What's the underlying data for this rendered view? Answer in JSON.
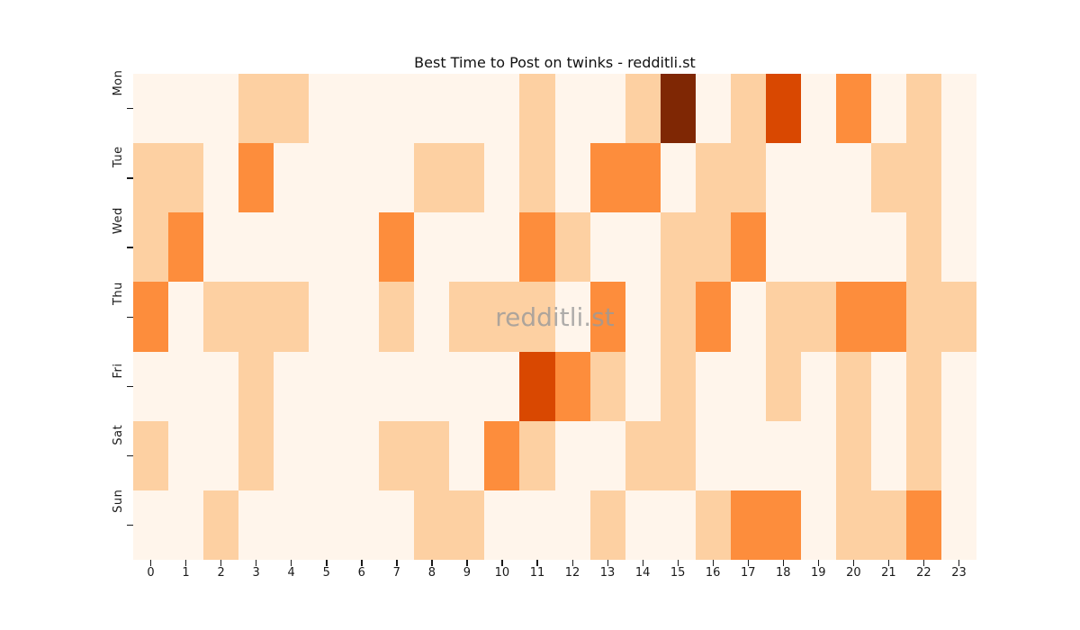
{
  "chart_data": {
    "type": "heatmap",
    "title": "Best Time to Post on twinks - redditli.st",
    "watermark": "redditli.st",
    "xlabel": "",
    "ylabel": "",
    "x_labels": [
      "0",
      "1",
      "2",
      "3",
      "4",
      "5",
      "6",
      "7",
      "8",
      "9",
      "10",
      "11",
      "12",
      "13",
      "14",
      "15",
      "16",
      "17",
      "18",
      "19",
      "20",
      "21",
      "22",
      "23"
    ],
    "y_labels": [
      "Mon",
      "Tue",
      "Wed",
      "Thu",
      "Fri",
      "Sat",
      "Sun"
    ],
    "legend": "none",
    "grid": "off",
    "palette": [
      "#fff5eb",
      "#fdd0a2",
      "#fd8d3c",
      "#d94801",
      "#7f2704"
    ],
    "intensity_scale": [
      0,
      1,
      2,
      3,
      4
    ],
    "values": [
      [
        0,
        0,
        0,
        1,
        1,
        0,
        0,
        0,
        0,
        0,
        0,
        1,
        0,
        0,
        1,
        4,
        0,
        1,
        3,
        0,
        2,
        0,
        1,
        0
      ],
      [
        1,
        1,
        0,
        2,
        0,
        0,
        0,
        0,
        1,
        1,
        0,
        1,
        0,
        2,
        2,
        0,
        1,
        1,
        0,
        0,
        0,
        1,
        1,
        0
      ],
      [
        1,
        2,
        0,
        0,
        0,
        0,
        0,
        2,
        0,
        0,
        0,
        2,
        1,
        0,
        0,
        1,
        1,
        2,
        0,
        0,
        0,
        0,
        1,
        0
      ],
      [
        2,
        0,
        1,
        1,
        1,
        0,
        0,
        1,
        0,
        1,
        1,
        1,
        0,
        2,
        0,
        1,
        2,
        0,
        1,
        1,
        2,
        2,
        1,
        1
      ],
      [
        0,
        0,
        0,
        1,
        0,
        0,
        0,
        0,
        0,
        0,
        0,
        3,
        2,
        1,
        0,
        1,
        0,
        0,
        1,
        0,
        1,
        0,
        1,
        0
      ],
      [
        1,
        0,
        0,
        1,
        0,
        0,
        0,
        1,
        1,
        0,
        2,
        1,
        0,
        0,
        1,
        1,
        0,
        0,
        0,
        0,
        1,
        0,
        1,
        0
      ],
      [
        0,
        0,
        1,
        0,
        0,
        0,
        0,
        0,
        1,
        1,
        0,
        0,
        0,
        1,
        0,
        0,
        1,
        2,
        2,
        0,
        1,
        1,
        2,
        0
      ]
    ]
  }
}
